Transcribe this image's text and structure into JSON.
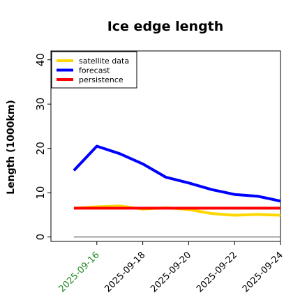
{
  "chart_data": {
    "type": "line",
    "title": "Ice edge length",
    "xlabel": "",
    "ylabel": "Length (1000km)",
    "x": [
      "2025-09-15",
      "2025-09-16",
      "2025-09-17",
      "2025-09-18",
      "2025-09-19",
      "2025-09-20",
      "2025-09-21",
      "2025-09-22",
      "2025-09-23",
      "2025-09-24"
    ],
    "xticks": [
      "2025-09-16",
      "2025-09-18",
      "2025-09-20",
      "2025-09-22",
      "2025-09-24"
    ],
    "xtick_colors": [
      "#228b22",
      "#000000",
      "#000000",
      "#000000",
      "#000000"
    ],
    "xlim": [
      "2025-09-14",
      "2025-09-24"
    ],
    "ylim": [
      -1,
      42
    ],
    "yticks": [
      0,
      10,
      20,
      30,
      40
    ],
    "grid": false,
    "legend_position": "top-left",
    "zero_line_color": "#808080",
    "series": [
      {
        "name": "satellite data",
        "color": "#ffd700",
        "values": [
          6.5,
          6.8,
          7.0,
          6.3,
          6.6,
          6.2,
          5.3,
          4.9,
          5.1,
          4.9
        ]
      },
      {
        "name": "forecast",
        "color": "#0000ff",
        "values": [
          15.0,
          20.5,
          18.8,
          16.5,
          13.5,
          12.2,
          10.7,
          9.6,
          9.2,
          8.1
        ]
      },
      {
        "name": "persistence",
        "color": "#ff0000",
        "values": [
          6.5,
          6.5,
          6.5,
          6.5,
          6.5,
          6.5,
          6.5,
          6.5,
          6.5,
          6.5
        ]
      }
    ]
  }
}
